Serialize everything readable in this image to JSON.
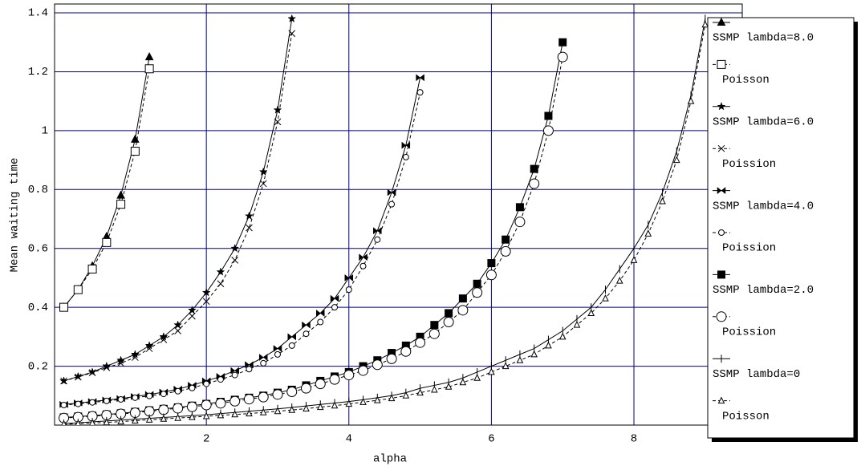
{
  "chart_data": {
    "type": "line",
    "xlabel": "alpha",
    "ylabel": "Mean waiting time",
    "xlim": [
      -0.13,
      9.52
    ],
    "ylim": [
      0,
      1.43
    ],
    "xticks": [
      2,
      4,
      6,
      8
    ],
    "yticks": [
      0.2,
      0.4,
      0.6,
      0.8,
      1,
      1.2,
      1.4
    ],
    "grid": true,
    "grid_color": "#000080",
    "legend": "right",
    "x": [
      0,
      0.2,
      0.4,
      0.6,
      0.8,
      1,
      1.2,
      1.4,
      1.6,
      1.8,
      2,
      2.2,
      2.4,
      2.6,
      2.8,
      3,
      3.2,
      3.4,
      3.6,
      3.8,
      4,
      4.2,
      4.4,
      4.6,
      4.8,
      5,
      5.2,
      5.4,
      5.6,
      5.8,
      6,
      6.2,
      6.4,
      6.6,
      6.8,
      7,
      7.2,
      7.4,
      7.6,
      7.8,
      8,
      8.2,
      8.4,
      8.6,
      8.8,
      9
    ],
    "series": [
      {
        "name": "SSMP lambda=8.0",
        "color": "#000000",
        "dash": false,
        "marker": "triangle-filled",
        "values": [
          0.4,
          0.46,
          0.54,
          0.64,
          0.78,
          0.97,
          1.25,
          null,
          null,
          null,
          null,
          null,
          null,
          null,
          null,
          null,
          null,
          null,
          null,
          null,
          null,
          null,
          null,
          null,
          null,
          null,
          null,
          null,
          null,
          null,
          null,
          null,
          null,
          null,
          null,
          null,
          null,
          null,
          null,
          null,
          null,
          null,
          null,
          null,
          null,
          null
        ]
      },
      {
        "name": "Poisson",
        "color": "#000000",
        "dash": true,
        "marker": "square-open",
        "values": [
          0.4,
          0.46,
          0.53,
          0.62,
          0.75,
          0.93,
          1.21,
          null,
          null,
          null,
          null,
          null,
          null,
          null,
          null,
          null,
          null,
          null,
          null,
          null,
          null,
          null,
          null,
          null,
          null,
          null,
          null,
          null,
          null,
          null,
          null,
          null,
          null,
          null,
          null,
          null,
          null,
          null,
          null,
          null,
          null,
          null,
          null,
          null,
          null,
          null
        ]
      },
      {
        "name": "SSMP lambda=6.0",
        "color": "#000000",
        "dash": false,
        "marker": "star",
        "values": [
          0.15,
          0.165,
          0.18,
          0.2,
          0.22,
          0.24,
          0.27,
          0.3,
          0.34,
          0.39,
          0.45,
          0.52,
          0.6,
          0.71,
          0.86,
          1.07,
          1.38,
          null,
          null,
          null,
          null,
          null,
          null,
          null,
          null,
          null,
          null,
          null,
          null,
          null,
          null,
          null,
          null,
          null,
          null,
          null,
          null,
          null,
          null,
          null,
          null,
          null,
          null,
          null,
          null,
          null
        ]
      },
      {
        "name": "Poission",
        "color": "#000000",
        "dash": true,
        "marker": "cross",
        "values": [
          0.15,
          0.163,
          0.178,
          0.195,
          0.21,
          0.23,
          0.26,
          0.29,
          0.32,
          0.37,
          0.42,
          0.48,
          0.56,
          0.67,
          0.82,
          1.03,
          1.33,
          null,
          null,
          null,
          null,
          null,
          null,
          null,
          null,
          null,
          null,
          null,
          null,
          null,
          null,
          null,
          null,
          null,
          null,
          null,
          null,
          null,
          null,
          null,
          null,
          null,
          null,
          null,
          null,
          null
        ]
      },
      {
        "name": "SSMP lambda=4.0",
        "color": "#000000",
        "dash": false,
        "marker": "bowtie",
        "values": [
          0.07,
          0.075,
          0.08,
          0.085,
          0.09,
          0.097,
          0.104,
          0.112,
          0.122,
          0.135,
          0.15,
          0.165,
          0.185,
          0.205,
          0.23,
          0.26,
          0.3,
          0.34,
          0.38,
          0.43,
          0.5,
          0.57,
          0.66,
          0.79,
          0.95,
          1.18,
          null,
          null,
          null,
          null,
          null,
          null,
          null,
          null,
          null,
          null,
          null,
          null,
          null,
          null,
          null,
          null,
          null,
          null,
          null,
          null
        ]
      },
      {
        "name": "Poission",
        "color": "#000000",
        "dash": true,
        "marker": "circle-small",
        "values": [
          0.068,
          0.072,
          0.077,
          0.082,
          0.087,
          0.093,
          0.099,
          0.106,
          0.115,
          0.126,
          0.14,
          0.155,
          0.17,
          0.19,
          0.21,
          0.24,
          0.27,
          0.31,
          0.35,
          0.4,
          0.46,
          0.54,
          0.63,
          0.75,
          0.91,
          1.13,
          null,
          null,
          null,
          null,
          null,
          null,
          null,
          null,
          null,
          null,
          null,
          null,
          null,
          null,
          null,
          null,
          null,
          null,
          null,
          null
        ]
      },
      {
        "name": "SSMP lambda=2.0",
        "color": "#000000",
        "dash": false,
        "marker": "square-filled",
        "values": [
          0.026,
          0.029,
          0.032,
          0.036,
          0.04,
          0.045,
          0.05,
          0.055,
          0.06,
          0.066,
          0.072,
          0.079,
          0.086,
          0.093,
          0.1,
          0.11,
          0.12,
          0.135,
          0.15,
          0.165,
          0.18,
          0.2,
          0.22,
          0.245,
          0.27,
          0.3,
          0.34,
          0.38,
          0.43,
          0.48,
          0.55,
          0.63,
          0.74,
          0.87,
          1.05,
          1.3,
          null,
          null,
          null,
          null,
          null,
          null,
          null,
          null,
          null,
          null
        ]
      },
      {
        "name": "Poission",
        "color": "#000000",
        "dash": true,
        "marker": "circle-large",
        "values": [
          0.024,
          0.027,
          0.03,
          0.034,
          0.038,
          0.042,
          0.047,
          0.052,
          0.057,
          0.062,
          0.068,
          0.074,
          0.081,
          0.088,
          0.095,
          0.104,
          0.113,
          0.125,
          0.14,
          0.155,
          0.17,
          0.185,
          0.205,
          0.225,
          0.25,
          0.28,
          0.31,
          0.35,
          0.39,
          0.45,
          0.51,
          0.59,
          0.69,
          0.82,
          1.0,
          1.25,
          null,
          null,
          null,
          null,
          null,
          null,
          null,
          null,
          null,
          null
        ]
      },
      {
        "name": "SSMP lambda=0",
        "color": "#000000",
        "dash": false,
        "marker": "tick",
        "values": [
          0.005,
          0.008,
          0.011,
          0.014,
          0.017,
          0.02,
          0.023,
          0.026,
          0.029,
          0.032,
          0.035,
          0.039,
          0.043,
          0.047,
          0.051,
          0.055,
          0.06,
          0.065,
          0.07,
          0.075,
          0.08,
          0.086,
          0.093,
          0.1,
          0.11,
          0.125,
          0.135,
          0.145,
          0.16,
          0.18,
          0.2,
          0.22,
          0.24,
          0.26,
          0.29,
          0.32,
          0.36,
          0.4,
          0.46,
          0.53,
          0.6,
          0.68,
          0.79,
          0.93,
          1.12,
          1.38
        ]
      },
      {
        "name": "Poisson",
        "color": "#000000",
        "dash": true,
        "marker": "triangle-open",
        "values": [
          0.003,
          0.005,
          0.007,
          0.009,
          0.012,
          0.015,
          0.018,
          0.021,
          0.024,
          0.027,
          0.03,
          0.033,
          0.036,
          0.039,
          0.043,
          0.047,
          0.051,
          0.056,
          0.061,
          0.066,
          0.072,
          0.078,
          0.084,
          0.091,
          0.1,
          0.11,
          0.12,
          0.13,
          0.145,
          0.16,
          0.18,
          0.2,
          0.22,
          0.24,
          0.27,
          0.3,
          0.34,
          0.38,
          0.43,
          0.49,
          0.56,
          0.65,
          0.76,
          0.9,
          1.1,
          1.36
        ]
      }
    ]
  }
}
